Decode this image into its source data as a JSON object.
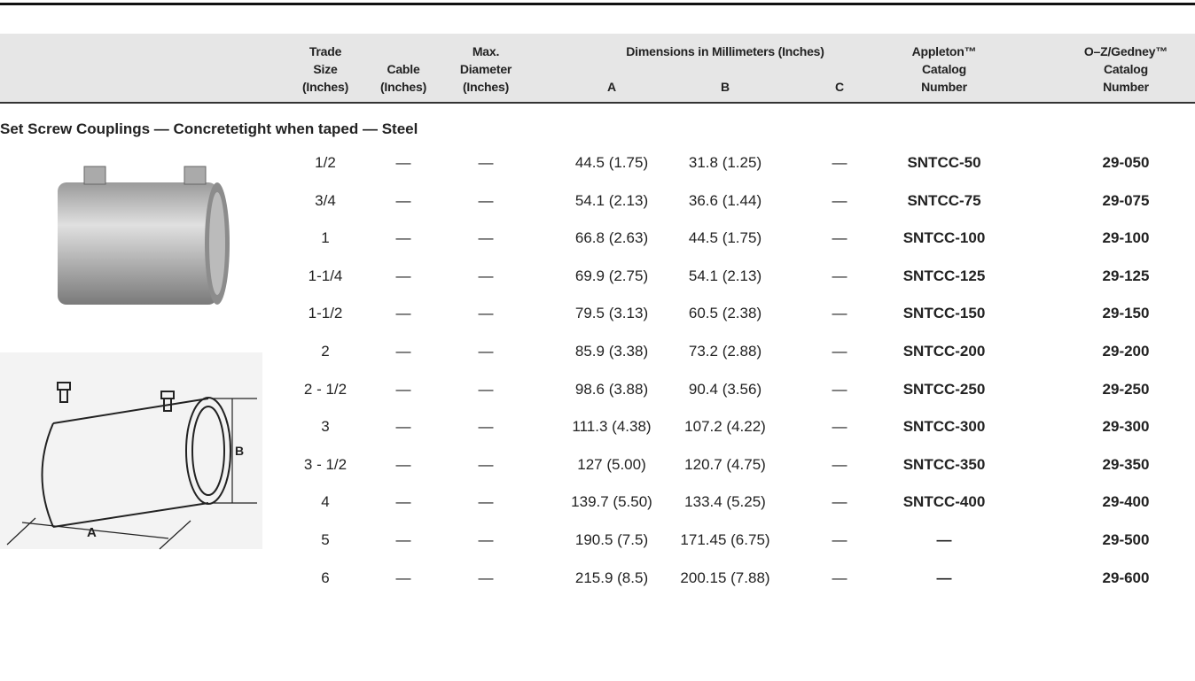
{
  "header": {
    "columns": [
      {
        "lines": [
          "Trade",
          "Size",
          "(Inches)"
        ]
      },
      {
        "lines": [
          "Cable",
          "(Inches)"
        ]
      },
      {
        "lines": [
          "Max.",
          "Diameter",
          "(Inches)"
        ]
      },
      {
        "lines": [
          "A"
        ]
      },
      {
        "lines": [
          "B"
        ]
      },
      {
        "lines": [
          "C"
        ]
      },
      {
        "lines": [
          "Appleton™",
          "Catalog",
          "Number"
        ]
      },
      {
        "lines": [
          "O–Z/Gedney™",
          "Catalog",
          "Number"
        ]
      }
    ],
    "group": "Dimensions in Millimeters (Inches)"
  },
  "section": "Set Screw Couplings — Concretetight when taped — Steel",
  "table": {
    "rows": [
      [
        "1/2",
        "—",
        "—",
        "44.5 (1.75)",
        "31.8 (1.25)",
        "—",
        "SNTCC-50",
        "29-050"
      ],
      [
        "3/4",
        "—",
        "—",
        "54.1 (2.13)",
        "36.6 (1.44)",
        "—",
        "SNTCC-75",
        "29-075"
      ],
      [
        "1",
        "—",
        "—",
        "66.8 (2.63)",
        "44.5 (1.75)",
        "—",
        "SNTCC-100",
        "29-100"
      ],
      [
        "1-1/4",
        "—",
        "—",
        "69.9 (2.75)",
        "54.1 (2.13)",
        "—",
        "SNTCC-125",
        "29-125"
      ],
      [
        "1-1/2",
        "—",
        "—",
        "79.5 (3.13)",
        "60.5 (2.38)",
        "—",
        "SNTCC-150",
        "29-150"
      ],
      [
        "2",
        "—",
        "—",
        "85.9 (3.38)",
        "73.2 (2.88)",
        "—",
        "SNTCC-200",
        "29-200"
      ],
      [
        "2 - 1/2",
        "—",
        "—",
        "98.6 (3.88)",
        "90.4 (3.56)",
        "—",
        "SNTCC-250",
        "29-250"
      ],
      [
        "3",
        "—",
        "—",
        "111.3 (4.38)",
        "107.2 (4.22)",
        "—",
        "SNTCC-300",
        "29-300"
      ],
      [
        "3 - 1/2",
        "—",
        "—",
        "127 (5.00)",
        "120.7 (4.75)",
        "—",
        "SNTCC-350",
        "29-350"
      ],
      [
        "4",
        "—",
        "—",
        "139.7 (5.50)",
        "133.4 (5.25)",
        "—",
        "SNTCC-400",
        "29-400"
      ],
      [
        "5",
        "—",
        "—",
        "190.5 (7.5)",
        "171.45 (6.75)",
        "—",
        "—",
        "29-500"
      ],
      [
        "6",
        "—",
        "—",
        "215.9 (8.5)",
        "200.15 (7.88)",
        "—",
        "—",
        "29-600"
      ]
    ]
  },
  "figure": {
    "labels": [
      "A",
      "B"
    ]
  }
}
